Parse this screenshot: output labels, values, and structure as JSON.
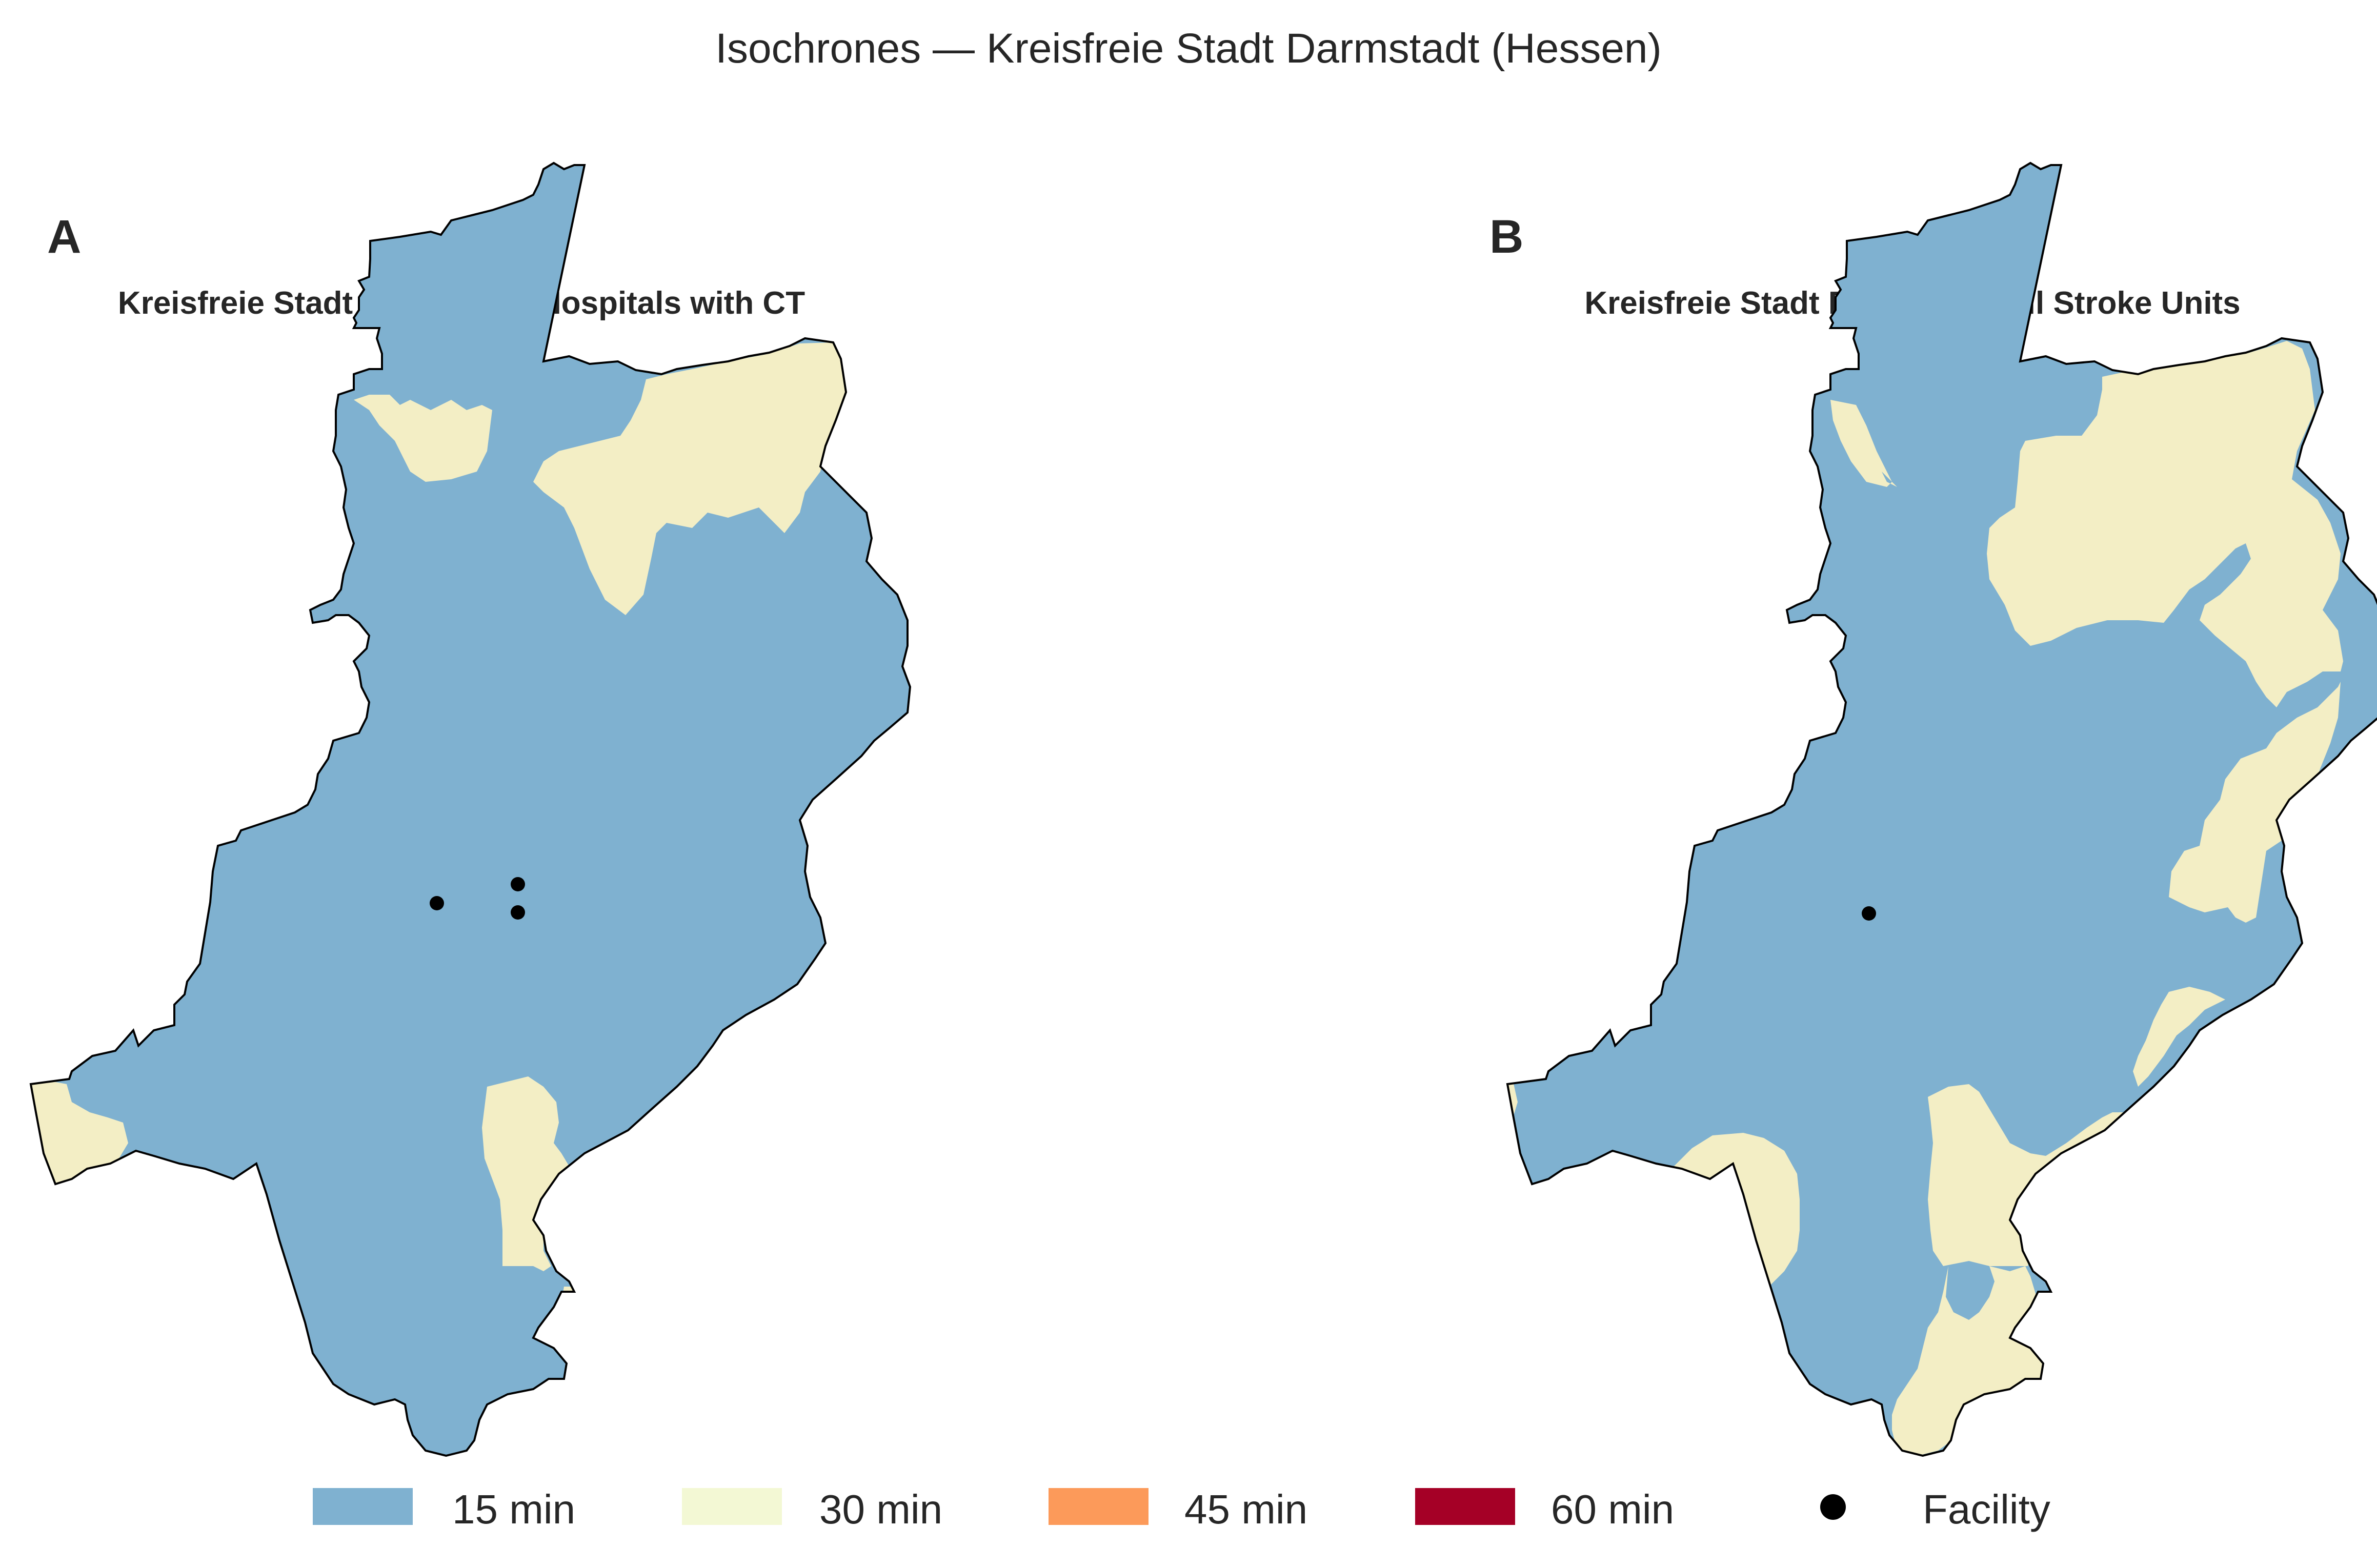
{
  "figure": {
    "title": "Isochrones — Kreisfreie Stadt Darmstadt (Hessen)"
  },
  "panels": [
    {
      "letter": "A",
      "title": "Kreisfreie Stadt Darmstadt: Hospitals with CT",
      "facility_count": 3
    },
    {
      "letter": "B",
      "title": "Kreisfreie Stadt Darmstadt: All Stroke Units",
      "facility_count": 1
    }
  ],
  "legend": {
    "items": [
      {
        "label": "15 min",
        "color": "#7fb1d0"
      },
      {
        "label": "30 min",
        "color": "#f3eec5"
      },
      {
        "label": "45 min",
        "color": "#fc9a5a"
      },
      {
        "label": "60 min",
        "color": "#a50026"
      },
      {
        "label": "Facility",
        "marker": "circle",
        "color": "#000000"
      }
    ]
  },
  "colors": {
    "zone_15": "#7fb1d0",
    "zone_30": "#f3eec5",
    "boundary": "#000000"
  }
}
